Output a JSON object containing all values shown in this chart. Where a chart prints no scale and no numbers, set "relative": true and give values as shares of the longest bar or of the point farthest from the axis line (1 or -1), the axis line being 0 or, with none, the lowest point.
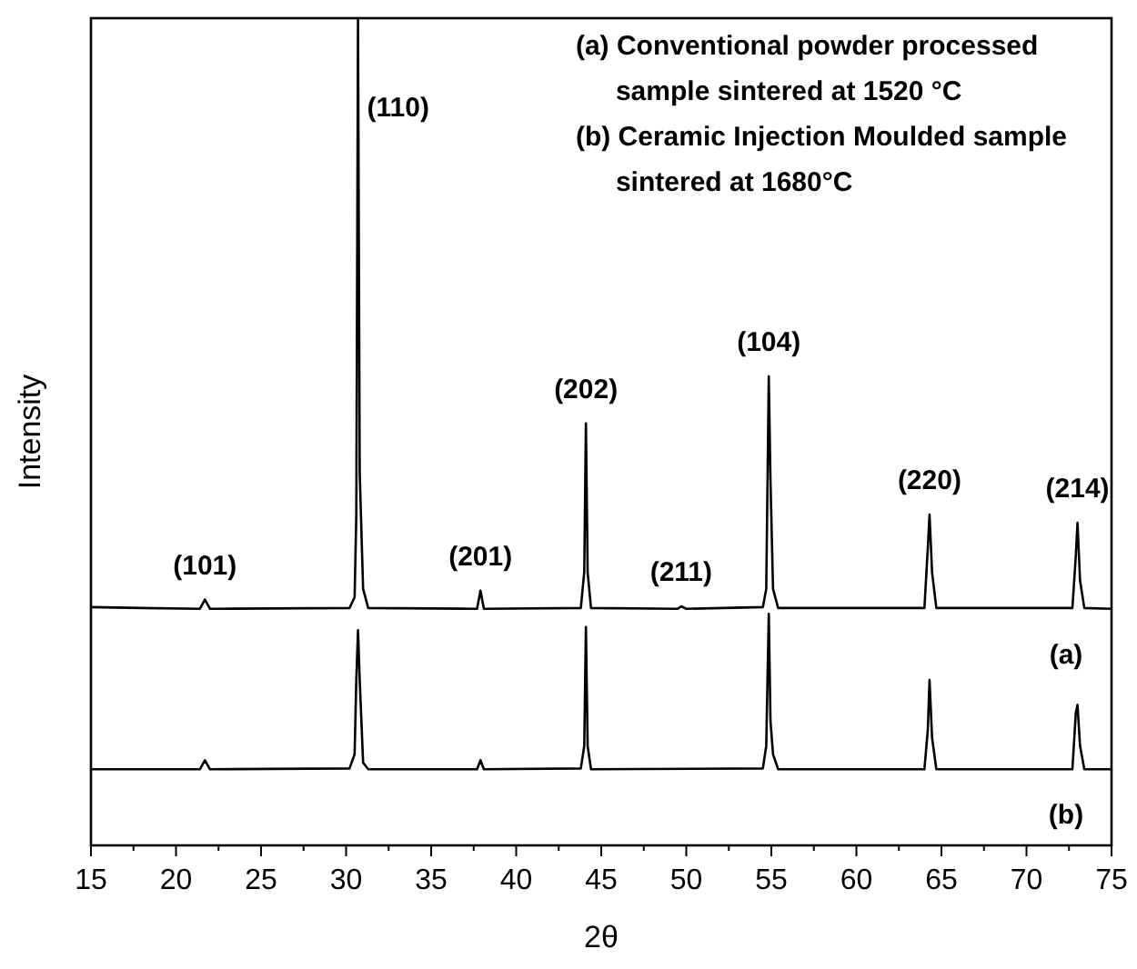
{
  "chart_data": {
    "type": "line",
    "relative": true,
    "xlabel": "2θ",
    "ylabel": "Intensity",
    "xlim": [
      15,
      75
    ],
    "xticks": [
      15,
      20,
      25,
      30,
      35,
      40,
      45,
      50,
      55,
      60,
      65,
      70,
      75
    ],
    "tick_labels": "x",
    "grid": false,
    "marker": "none",
    "line_style": "solid",
    "series": [
      {
        "name": "(a)",
        "color": "#000000",
        "x": [
          15,
          18,
          21.4,
          21.7,
          22,
          30.2,
          30.5,
          30.6,
          30.7,
          30.8,
          31.0,
          31.3,
          37.7,
          37.9,
          38.1,
          43.8,
          44.0,
          44.1,
          44.2,
          44.4,
          49.5,
          49.7,
          50,
          54.5,
          54.7,
          54.85,
          54.95,
          55.1,
          55.4,
          64.0,
          64.2,
          64.3,
          64.45,
          64.7,
          72.7,
          72.9,
          73.0,
          73.15,
          73.4,
          75
        ],
        "values": [
          0.288,
          0.287,
          0.286,
          0.297,
          0.286,
          0.287,
          0.3,
          0.4,
          1.0,
          0.45,
          0.31,
          0.287,
          0.286,
          0.308,
          0.286,
          0.287,
          0.33,
          0.51,
          0.33,
          0.287,
          0.286,
          0.289,
          0.286,
          0.288,
          0.31,
          0.567,
          0.44,
          0.31,
          0.287,
          0.287,
          0.36,
          0.4,
          0.33,
          0.287,
          0.287,
          0.35,
          0.39,
          0.32,
          0.287,
          0.286
        ]
      },
      {
        "name": "(b)",
        "color": "#000000",
        "x": [
          15,
          18,
          21.4,
          21.7,
          22,
          30.2,
          30.5,
          30.6,
          30.7,
          30.8,
          31.0,
          31.3,
          37.7,
          37.9,
          38.1,
          43.8,
          44.0,
          44.1,
          44.2,
          44.4,
          54.5,
          54.7,
          54.85,
          54.95,
          55.1,
          55.4,
          64.0,
          64.2,
          64.3,
          64.45,
          64.7,
          72.7,
          72.9,
          73.0,
          73.15,
          73.4,
          75
        ],
        "values": [
          0.092,
          0.092,
          0.092,
          0.103,
          0.092,
          0.093,
          0.11,
          0.2,
          0.26,
          0.2,
          0.1,
          0.092,
          0.092,
          0.103,
          0.092,
          0.093,
          0.12,
          0.264,
          0.12,
          0.092,
          0.093,
          0.12,
          0.28,
          0.15,
          0.11,
          0.092,
          0.092,
          0.14,
          0.2,
          0.13,
          0.092,
          0.092,
          0.16,
          0.17,
          0.12,
          0.092,
          0.092
        ]
      }
    ],
    "annotations": [
      {
        "text": "(101)",
        "x": 21.7,
        "y": 0.297
      },
      {
        "text": "(110)",
        "x": 30.7,
        "y": 0.89
      },
      {
        "text": "(201)",
        "x": 37.9,
        "y": 0.308
      },
      {
        "text": "(202)",
        "x": 44.1,
        "y": 0.51
      },
      {
        "text": "(211)",
        "x": 49.7,
        "y": 0.289
      },
      {
        "text": "(104)",
        "x": 54.85,
        "y": 0.567
      },
      {
        "text": "(220)",
        "x": 64.3,
        "y": 0.4
      },
      {
        "text": "(214)",
        "x": 73.0,
        "y": 0.39
      },
      "(a) Conventional powder processed\nsample sintered at 1520 °C",
      "(b) Ceramic Injection Moulded sample\nsintered at 1680°C"
    ]
  }
}
